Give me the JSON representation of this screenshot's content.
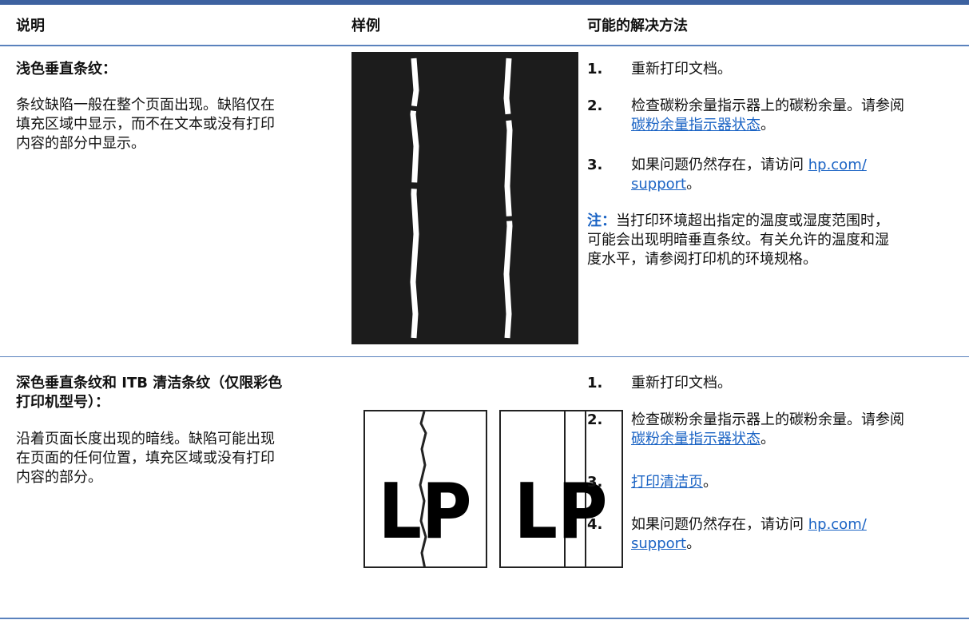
{
  "header": {
    "col1": "说明",
    "col2": "样例",
    "col3": "可能的解决方法"
  },
  "rows": [
    {
      "title_lines": [
        "浅色垂直条纹："
      ],
      "description_lines": [
        "条纹缺陷一般在整个页面出现。缺陷仅在",
        "填充区域中显示，而不在文本或没有打印",
        "内容的部分中显示。"
      ],
      "steps": [
        {
          "number": "1.",
          "lines": [
            [
              {
                "text": "重新打印文档。"
              }
            ]
          ]
        },
        {
          "number": "2.",
          "lines": [
            [
              {
                "text": "检查碳粉余量指示器上的碳粉余量。请参阅"
              }
            ],
            [
              {
                "text": "碳粉余量指示器状态",
                "link": true
              },
              {
                "text": "。"
              }
            ]
          ]
        },
        {
          "number": "3.",
          "lines": [
            [
              {
                "text": "如果问题仍然存在，请访问 "
              },
              {
                "text": "hp.com/",
                "link": true
              }
            ],
            [
              {
                "text": "support",
                "link": true
              },
              {
                "text": "。"
              }
            ]
          ]
        }
      ],
      "note": {
        "label": "注：",
        "lines": [
          "当打印环境超出指定的温度或湿度范围时，",
          "可能会出现明暗垂直条纹。有关允许的温度和湿",
          "度水平，请参阅打印机的环境规格。"
        ]
      }
    },
    {
      "title_lines": [
        "深色垂直条纹和 ITB 清洁条纹（仅限彩色",
        "打印机型号）："
      ],
      "description_lines": [
        "沿着页面长度出现的暗线。缺陷可能出现",
        "在页面的任何位置，填充区域或没有打印",
        "内容的部分。"
      ],
      "sample_labels": [
        "LP",
        "LP"
      ],
      "steps": [
        {
          "number": "1.",
          "lines": [
            [
              {
                "text": "重新打印文档。"
              }
            ]
          ]
        },
        {
          "number": "2.",
          "lines": [
            [
              {
                "text": "检查碳粉余量指示器上的碳粉余量。请参阅"
              }
            ],
            [
              {
                "text": "碳粉余量指示器状态",
                "link": true
              },
              {
                "text": "。"
              }
            ]
          ]
        },
        {
          "number": "3.",
          "lines": [
            [
              {
                "text": "打印清洁页",
                "link": true
              },
              {
                "text": "。"
              }
            ]
          ]
        },
        {
          "number": "4.",
          "lines": [
            [
              {
                "text": "如果问题仍然存在，请访问 "
              },
              {
                "text": "hp.com/",
                "link": true
              }
            ],
            [
              {
                "text": "support",
                "link": true
              },
              {
                "text": "。"
              }
            ]
          ]
        }
      ]
    }
  ]
}
